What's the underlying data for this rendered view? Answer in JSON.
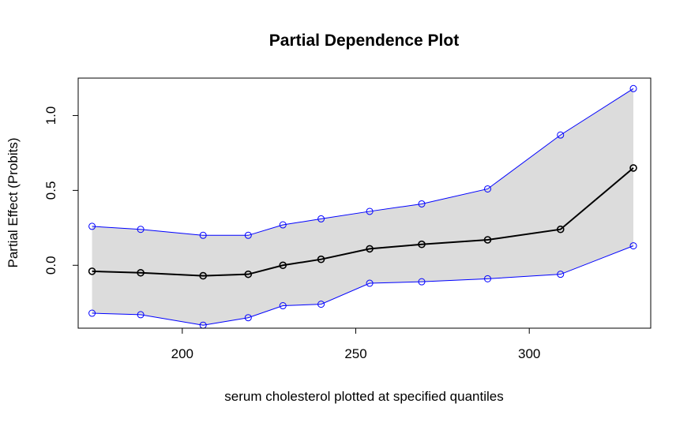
{
  "chart_data": {
    "type": "line",
    "title": "Partial Dependence Plot",
    "xlabel": "serum cholesterol plotted at specified quantiles",
    "ylabel": "Partial Effect (Probits)",
    "xlim": [
      170,
      335
    ],
    "ylim": [
      -0.42,
      1.25
    ],
    "x_ticks": [
      200,
      250,
      300
    ],
    "y_ticks": [
      0.0,
      0.5,
      1.0
    ],
    "y_tick_labels": [
      "0.0",
      "0.5",
      "1.0"
    ],
    "grid": false,
    "legend": "none",
    "x": [
      174,
      188,
      206,
      219,
      229,
      240,
      254,
      269,
      288,
      309,
      330
    ],
    "series": [
      {
        "role": "estimate",
        "values": [
          -0.04,
          -0.05,
          -0.07,
          -0.06,
          0.0,
          0.04,
          0.11,
          0.14,
          0.17,
          0.24,
          0.65
        ]
      },
      {
        "role": "upper",
        "values": [
          0.26,
          0.24,
          0.2,
          0.2,
          0.27,
          0.31,
          0.36,
          0.41,
          0.51,
          0.87,
          1.18
        ]
      },
      {
        "role": "lower",
        "values": [
          -0.32,
          -0.33,
          -0.4,
          -0.35,
          -0.27,
          -0.26,
          -0.12,
          -0.11,
          -0.09,
          -0.06,
          0.13
        ]
      }
    ],
    "colors": {
      "estimate": "#000000",
      "bounds": "#0000ff",
      "band": "#dcdcdc",
      "frame": "#000000"
    }
  }
}
